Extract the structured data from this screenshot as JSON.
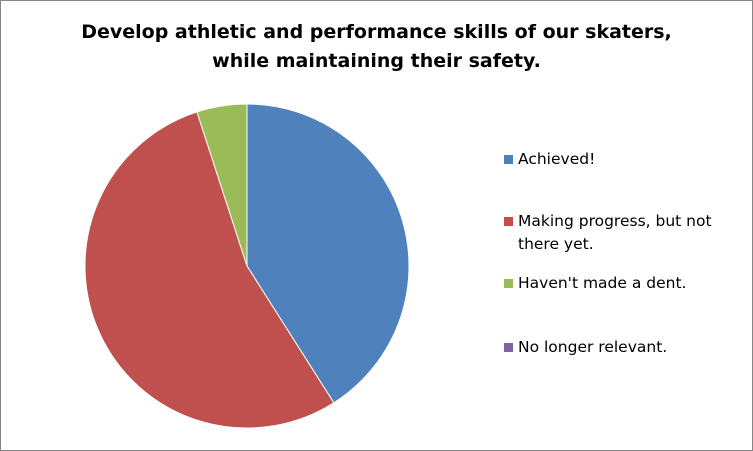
{
  "chart_data": {
    "type": "pie",
    "title": "Develop athletic and performance skills of our skaters, while maintaining their safety.",
    "title_lines": [
      "Develop athletic and performance skills of our skaters,",
      "while maintaining their safety."
    ],
    "categories": [
      "Achieved!",
      "Making progress, but not there yet.",
      "Haven't made a dent.",
      "No longer relevant."
    ],
    "values": [
      41,
      54,
      5,
      0
    ],
    "colors": [
      "#4F81BD",
      "#C0504D",
      "#9BBB59",
      "#8064A2"
    ],
    "start_angle": "top (12 o'clock), clockwise",
    "legend_position": "right",
    "slice_border_color": "#ffffff"
  }
}
